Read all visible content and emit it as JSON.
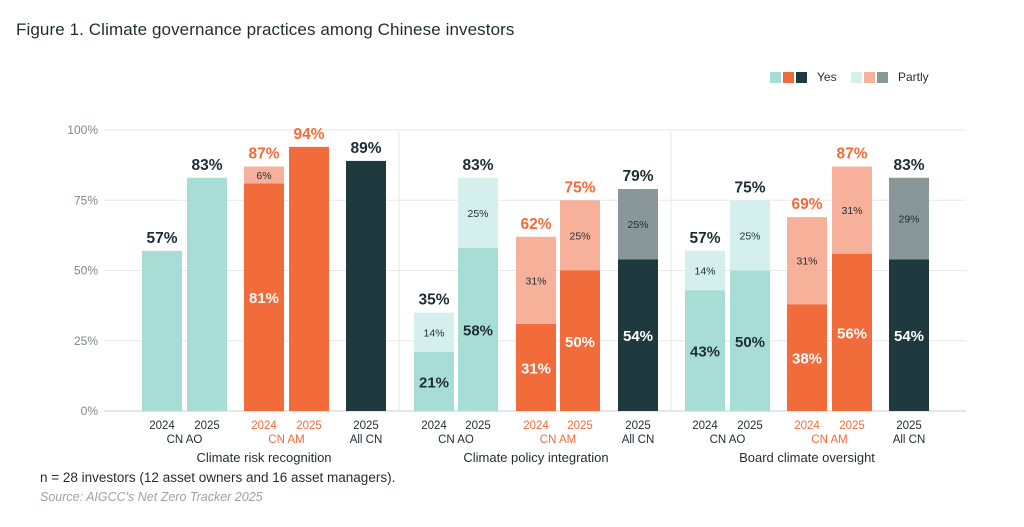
{
  "title": "Figure 1. Climate governance practices among Chinese investors",
  "legend": {
    "yes_label": "Yes",
    "partly_label": "Partly",
    "yes_colors": [
      "#a8ddd6",
      "#f26b3a",
      "#1e3a3e"
    ],
    "partly_colors": [
      "#d4efec",
      "#f7b19a",
      "#8a9799"
    ]
  },
  "note": "n = 28 investors (12 asset owners and 16 asset managers).",
  "source": "Source: AIGCC's Net Zero Tracker 2025",
  "colors": {
    "ao_yes": "#a8ddd6",
    "ao_partly": "#d4efec",
    "am_yes": "#f26b3a",
    "am_partly": "#f7b19a",
    "cn_yes": "#1e3a3e",
    "cn_partly": "#8a9799",
    "am_text": "#f26b3a",
    "dark_text": "#1f2d33"
  },
  "chart_data": {
    "type": "bar",
    "stacked": true,
    "ylim": [
      0,
      100
    ],
    "yticks": [
      "0%",
      "25%",
      "50%",
      "75%",
      "100%"
    ],
    "legend_position": "top-right",
    "grid": true,
    "panels": [
      {
        "name": "Climate risk recognition",
        "bars": [
          {
            "year": "2024",
            "group": "ao",
            "yes": 57,
            "partly": 0,
            "total": "57%",
            "yes_label": "",
            "partly_label": ""
          },
          {
            "year": "2025",
            "group": "ao",
            "yes": 83,
            "partly": 0,
            "total": "83%",
            "yes_label": "",
            "partly_label": ""
          },
          {
            "year": "2024",
            "group": "am",
            "yes": 81,
            "partly": 6,
            "total": "87%",
            "yes_label": "81%",
            "partly_label": "6%"
          },
          {
            "year": "2025",
            "group": "am",
            "yes": 94,
            "partly": 0,
            "total": "94%",
            "yes_label": "",
            "partly_label": ""
          },
          {
            "year": "2025",
            "group": "cn",
            "yes": 89,
            "partly": 0,
            "total": "89%",
            "yes_label": "",
            "partly_label": ""
          }
        ]
      },
      {
        "name": "Climate policy integration",
        "bars": [
          {
            "year": "2024",
            "group": "ao",
            "yes": 21,
            "partly": 14,
            "total": "35%",
            "yes_label": "21%",
            "partly_label": "14%"
          },
          {
            "year": "2025",
            "group": "ao",
            "yes": 58,
            "partly": 25,
            "total": "83%",
            "yes_label": "58%",
            "partly_label": "25%"
          },
          {
            "year": "2024",
            "group": "am",
            "yes": 31,
            "partly": 31,
            "total": "62%",
            "yes_label": "31%",
            "partly_label": "31%"
          },
          {
            "year": "2025",
            "group": "am",
            "yes": 50,
            "partly": 25,
            "total": "75%",
            "yes_label": "50%",
            "partly_label": "25%"
          },
          {
            "year": "2025",
            "group": "cn",
            "yes": 54,
            "partly": 25,
            "total": "79%",
            "yes_label": "54%",
            "partly_label": "25%"
          }
        ]
      },
      {
        "name": "Board climate oversight",
        "bars": [
          {
            "year": "2024",
            "group": "ao",
            "yes": 43,
            "partly": 14,
            "total": "57%",
            "yes_label": "43%",
            "partly_label": "14%"
          },
          {
            "year": "2025",
            "group": "ao",
            "yes": 50,
            "partly": 25,
            "total": "75%",
            "yes_label": "50%",
            "partly_label": "25%"
          },
          {
            "year": "2024",
            "group": "am",
            "yes": 38,
            "partly": 31,
            "total": "69%",
            "yes_label": "38%",
            "partly_label": "31%"
          },
          {
            "year": "2025",
            "group": "am",
            "yes": 56,
            "partly": 31,
            "total": "87%",
            "yes_label": "56%",
            "partly_label": "31%"
          },
          {
            "year": "2025",
            "group": "cn",
            "yes": 54,
            "partly": 29,
            "total": "83%",
            "yes_label": "54%",
            "partly_label": "29%"
          }
        ]
      }
    ],
    "group_labels": {
      "ao": "CN AO",
      "am": "CN AM",
      "cn": "All CN"
    }
  }
}
